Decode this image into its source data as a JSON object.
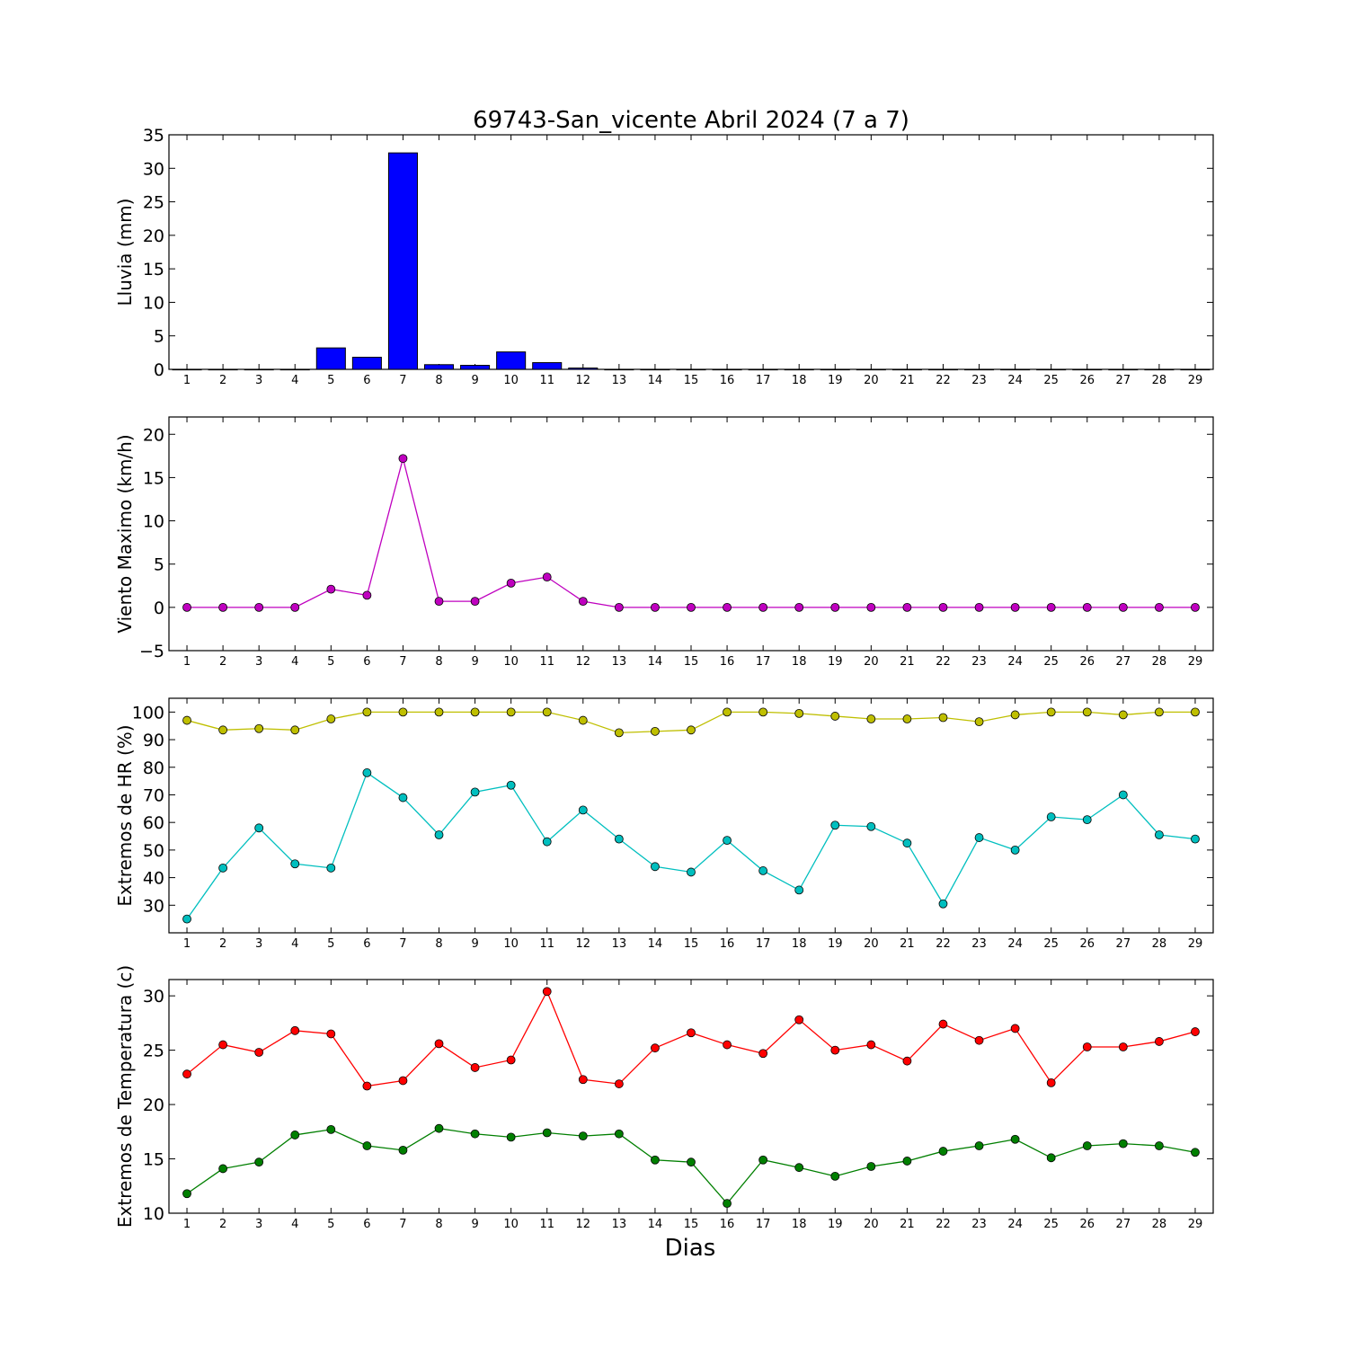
{
  "chart_data": {
    "type": "multi-panel",
    "title": "69743-San_vicente Abril 2024  (7 a 7)",
    "xlabel": "Dias",
    "x": [
      1,
      2,
      3,
      4,
      5,
      6,
      7,
      8,
      9,
      10,
      11,
      12,
      13,
      14,
      15,
      16,
      17,
      18,
      19,
      20,
      21,
      22,
      23,
      24,
      25,
      26,
      27,
      28,
      29
    ],
    "panels": [
      {
        "type": "bar",
        "ylabel": "Lluvia (mm)",
        "ylim": [
          0,
          35
        ],
        "yticks": [
          0,
          5,
          10,
          15,
          20,
          25,
          30,
          35
        ],
        "series": [
          {
            "color": "#0000ff",
            "values": [
              0,
              0,
              0,
              0,
              3.2,
              1.8,
              32.3,
              0.7,
              0.6,
              2.6,
              1.0,
              0.2,
              0,
              0,
              0,
              0,
              0,
              0,
              0,
              0,
              0,
              0,
              0,
              0,
              0,
              0,
              0,
              0,
              0
            ]
          }
        ]
      },
      {
        "type": "line",
        "ylabel": "Viento Maximo (km/h)",
        "ylim": [
          -5,
          22
        ],
        "yticks": [
          -5,
          0,
          5,
          10,
          15,
          20
        ],
        "ytick_labels": [
          "−5",
          "0",
          "5",
          "10",
          "15",
          "20"
        ],
        "series": [
          {
            "color": "#bf00bf",
            "values": [
              0,
              0,
              0,
              0,
              2.1,
              1.4,
              17.2,
              0.7,
              0.7,
              2.8,
              3.5,
              0.7,
              0,
              0,
              0,
              0,
              0,
              0,
              0,
              0,
              0,
              0,
              0,
              0,
              0,
              0,
              0,
              0,
              0
            ]
          }
        ]
      },
      {
        "type": "line",
        "ylabel": "Extremos de HR (%)",
        "ylim": [
          20,
          105
        ],
        "yticks": [
          30,
          40,
          50,
          60,
          70,
          80,
          90,
          100
        ],
        "series": [
          {
            "color": "#bfbf00",
            "values": [
              97,
              93.5,
              94,
              93.5,
              97.5,
              100,
              100,
              100,
              100,
              100,
              100,
              97,
              92.5,
              93,
              93.5,
              100,
              100,
              99.5,
              98.5,
              97.5,
              97.5,
              98,
              96.5,
              99,
              100,
              100,
              99,
              100,
              100
            ]
          },
          {
            "color": "#00bfbf",
            "values": [
              25,
              43.5,
              58,
              45,
              43.5,
              78,
              69,
              55.5,
              71,
              73.5,
              53,
              64.5,
              54,
              44,
              42,
              53.5,
              42.5,
              35.5,
              59,
              58.5,
              52.5,
              30.5,
              54.5,
              50,
              62,
              61,
              70,
              55.5,
              54
            ]
          }
        ]
      },
      {
        "type": "line",
        "ylabel": "Extremos de Temperatura (c)",
        "ylim": [
          10,
          31.5
        ],
        "yticks": [
          10,
          15,
          20,
          25,
          30
        ],
        "series": [
          {
            "color": "#ff0000",
            "values": [
              22.8,
              25.5,
              24.8,
              26.8,
              26.5,
              21.7,
              22.2,
              25.6,
              23.4,
              24.1,
              30.4,
              22.3,
              21.9,
              25.2,
              26.6,
              25.5,
              24.7,
              27.8,
              25.0,
              25.5,
              24.0,
              27.4,
              25.9,
              27.0,
              22.0,
              25.3,
              25.3,
              25.8,
              26.7
            ]
          },
          {
            "color": "#007f00",
            "values": [
              11.8,
              14.1,
              14.7,
              17.2,
              17.7,
              16.2,
              15.8,
              17.8,
              17.3,
              17.0,
              17.4,
              17.1,
              17.3,
              14.9,
              14.7,
              10.9,
              14.9,
              14.2,
              13.4,
              14.3,
              14.8,
              15.7,
              16.2,
              16.8,
              15.1,
              16.2,
              16.4,
              16.2,
              15.6
            ]
          }
        ]
      }
    ]
  }
}
